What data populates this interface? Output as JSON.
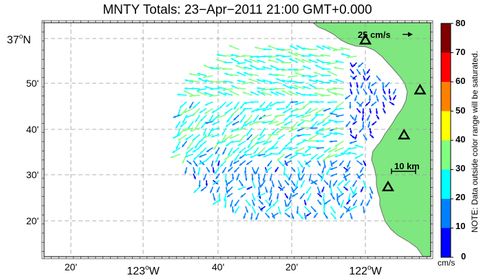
{
  "title": "MNTY Totals: 23−Apr−2011 21:00 GMT+0.000",
  "map": {
    "lon_labels": [
      {
        "deg": "",
        "min": "20'",
        "hemi": ""
      },
      {
        "deg": "123",
        "min": "",
        "hemi": "W"
      },
      {
        "deg": "",
        "min": "40'",
        "hemi": ""
      },
      {
        "deg": "",
        "min": "20'",
        "hemi": ""
      },
      {
        "deg": "122",
        "min": "",
        "hemi": "W"
      },
      {
        "deg": "",
        "min": "",
        "hemi": ""
      }
    ],
    "lat_labels": [
      {
        "deg": "37",
        "min": "",
        "hemi": "N"
      },
      {
        "deg": "",
        "min": "50'",
        "hemi": ""
      },
      {
        "deg": "",
        "min": "40'",
        "hemi": ""
      },
      {
        "deg": "",
        "min": "30'",
        "hemi": ""
      },
      {
        "deg": "",
        "min": "20'",
        "hemi": ""
      }
    ],
    "lon_range": [
      -123.3,
      -121.85
    ],
    "lat_range": [
      37.047,
      36.19
    ],
    "scale_speed_label": "25 cm/s",
    "scale_distance_label": "10 km",
    "land_color": "#7fe77f",
    "grid": true
  },
  "sites": [
    {
      "lon": -122.095,
      "lat": 36.983
    },
    {
      "lon": -121.89,
      "lat": 36.8
    },
    {
      "lon": -121.95,
      "lat": 36.635
    },
    {
      "lon": -122.01,
      "lat": 36.445
    }
  ],
  "colorbar": {
    "ticks": [
      "80",
      "70",
      "60",
      "50",
      "40",
      "30",
      "20",
      "10",
      "0"
    ],
    "unit": "cm/s",
    "note": "NOTE: Data outside color range will be saturated.",
    "min": 0,
    "max": 80,
    "colors": [
      "#0000ff",
      "#0080ff",
      "#00ffff",
      "#80ff80",
      "#ffff00",
      "#ff8000",
      "#ff0000",
      "#800000"
    ]
  },
  "icons": {
    "site_marker": "triangle-marker-icon",
    "scale_arrow": "arrow-right-icon"
  }
}
